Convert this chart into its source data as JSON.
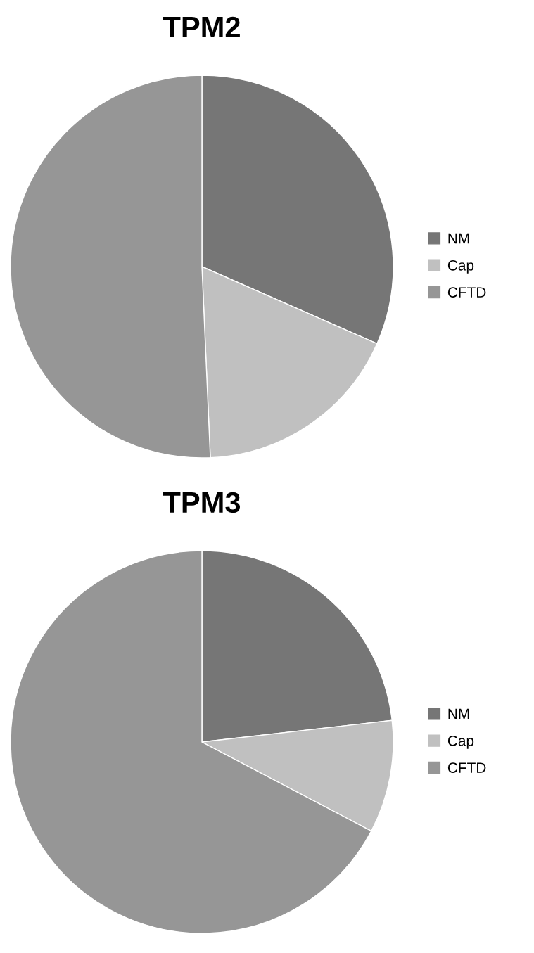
{
  "chart_data": [
    {
      "type": "pie",
      "title": "TPM2",
      "categories": [
        "NM",
        "Cap",
        "CFTD"
      ],
      "values": [
        31.6,
        17.7,
        50.7
      ],
      "colors": [
        "#767676",
        "#c0c0c0",
        "#969696"
      ],
      "legend": "right"
    },
    {
      "type": "pie",
      "title": "TPM3",
      "categories": [
        "NM",
        "Cap",
        "CFTD"
      ],
      "values": [
        23.2,
        9.5,
        67.3
      ],
      "colors": [
        "#767676",
        "#c0c0c0",
        "#969696"
      ],
      "legend": "right"
    }
  ]
}
